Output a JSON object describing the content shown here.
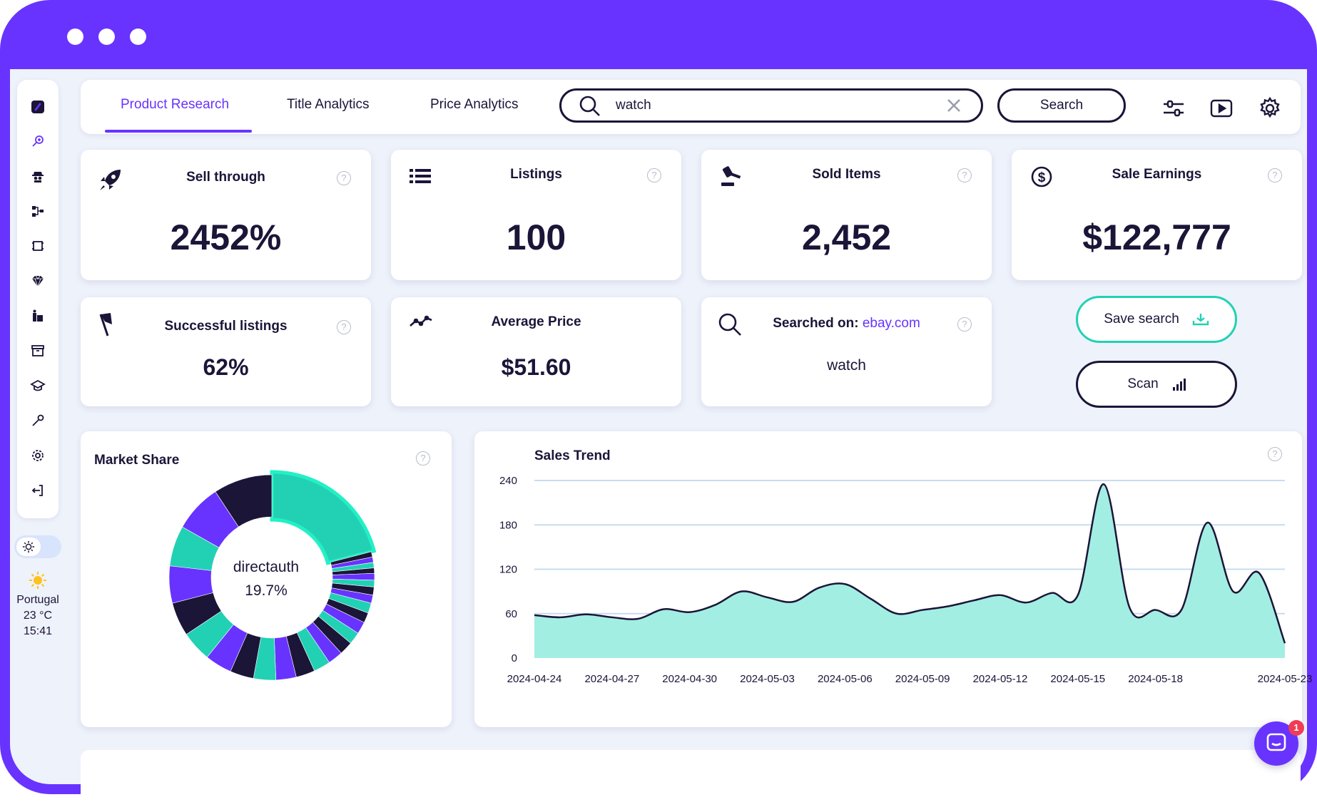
{
  "window": {
    "controls": [
      "close",
      "minimize",
      "maximize"
    ]
  },
  "tabs": [
    {
      "label": "Product Research",
      "active": true
    },
    {
      "label": "Title Analytics",
      "active": false
    },
    {
      "label": "Price Analytics",
      "active": false
    }
  ],
  "search": {
    "value": "watch",
    "button_label": "Search"
  },
  "toolbar_icons": [
    "sliders-icon",
    "video-play-icon",
    "settings-gear-icon"
  ],
  "sidebar": {
    "icons": [
      "app-logo-icon",
      "product-research-icon",
      "competitor-spy-icon",
      "category-tree-icon",
      "listing-frame-icon",
      "diamond-icon",
      "store-icon",
      "archive-icon",
      "academy-icon",
      "tools-icon",
      "settings-icon",
      "logout-icon"
    ]
  },
  "weather": {
    "location": "Portugal",
    "temperature": "23 °C",
    "time": "15:41"
  },
  "stats": {
    "sell_through": {
      "title": "Sell through",
      "value": "2452%",
      "icon": "rocket-icon"
    },
    "listings": {
      "title": "Listings",
      "value": "100",
      "icon": "list-icon"
    },
    "sold_items": {
      "title": "Sold Items",
      "value": "2,452",
      "icon": "gavel-icon"
    },
    "sale_earnings": {
      "title": "Sale Earnings",
      "value": "$122,777",
      "icon": "dollar-circle-icon"
    },
    "successful_listings": {
      "title": "Successful listings",
      "value": "62%",
      "icon": "flag-icon"
    },
    "average_price": {
      "title": "Average Price",
      "value": "$51.60",
      "icon": "trend-line-icon"
    },
    "searched_on": {
      "title": "Searched on:",
      "site": "ebay.com",
      "value": "watch",
      "icon": "search-icon"
    }
  },
  "actions": {
    "save_label": "Save search",
    "scan_label": "Scan"
  },
  "colors": {
    "brand": "#6833ff",
    "teal": "#22d1b4",
    "navy": "#1b1538",
    "area": "#a3eee2"
  },
  "market_share": {
    "title": "Market Share",
    "center_label": "directauth",
    "center_value": "19.7%"
  },
  "chart_data": [
    {
      "type": "pie",
      "title": "Market Share",
      "highlight": {
        "label": "directauth",
        "value": 19.7
      },
      "values": [
        19.7,
        0.8,
        0.8,
        0.8,
        0.8,
        1.0,
        1.0,
        1.2,
        1.2,
        1.5,
        1.5,
        1.8,
        1.8,
        2.0,
        2.2,
        2.5,
        2.8,
        3.0,
        3.3,
        3.5,
        4.0,
        4.5,
        5.0,
        5.5,
        6.0,
        7.1,
        8.7
      ],
      "colors": [
        "#22d1b4",
        "#1b1538",
        "#6833ff",
        "#22d1b4",
        "#1b1538",
        "#6833ff",
        "#22d1b4",
        "#1b1538",
        "#6833ff",
        "#22d1b4",
        "#1b1538",
        "#6833ff",
        "#22d1b4",
        "#1b1538",
        "#6833ff",
        "#22d1b4",
        "#1b1538",
        "#6833ff",
        "#22d1b4",
        "#1b1538",
        "#6833ff",
        "#22d1b4",
        "#1b1538",
        "#6833ff",
        "#22d1b4",
        "#6833ff",
        "#1b1538"
      ]
    },
    {
      "type": "area",
      "title": "Sales Trend",
      "ylim": [
        0,
        240
      ],
      "yticks": [
        0,
        60,
        120,
        180,
        240
      ],
      "xtick_labels": [
        "2024-04-24",
        "2024-04-27",
        "2024-04-30",
        "2024-05-03",
        "2024-05-06",
        "2024-05-09",
        "2024-05-12",
        "2024-05-15",
        "2024-05-18",
        "2024-05-23"
      ],
      "x": [
        "2024-04-24",
        "2024-04-25",
        "2024-04-26",
        "2024-04-27",
        "2024-04-28",
        "2024-04-29",
        "2024-04-30",
        "2024-05-01",
        "2024-05-02",
        "2024-05-03",
        "2024-05-04",
        "2024-05-05",
        "2024-05-06",
        "2024-05-07",
        "2024-05-08",
        "2024-05-09",
        "2024-05-10",
        "2024-05-11",
        "2024-05-12",
        "2024-05-13",
        "2024-05-14",
        "2024-05-15",
        "2024-05-16",
        "2024-05-17",
        "2024-05-18",
        "2024-05-19",
        "2024-05-20",
        "2024-05-21",
        "2024-05-22",
        "2024-05-23"
      ],
      "y": [
        58,
        55,
        59,
        55,
        53,
        66,
        62,
        72,
        90,
        82,
        76,
        95,
        100,
        80,
        60,
        65,
        70,
        78,
        85,
        75,
        88,
        85,
        235,
        68,
        65,
        65,
        183,
        90,
        115,
        20
      ]
    }
  ]
}
